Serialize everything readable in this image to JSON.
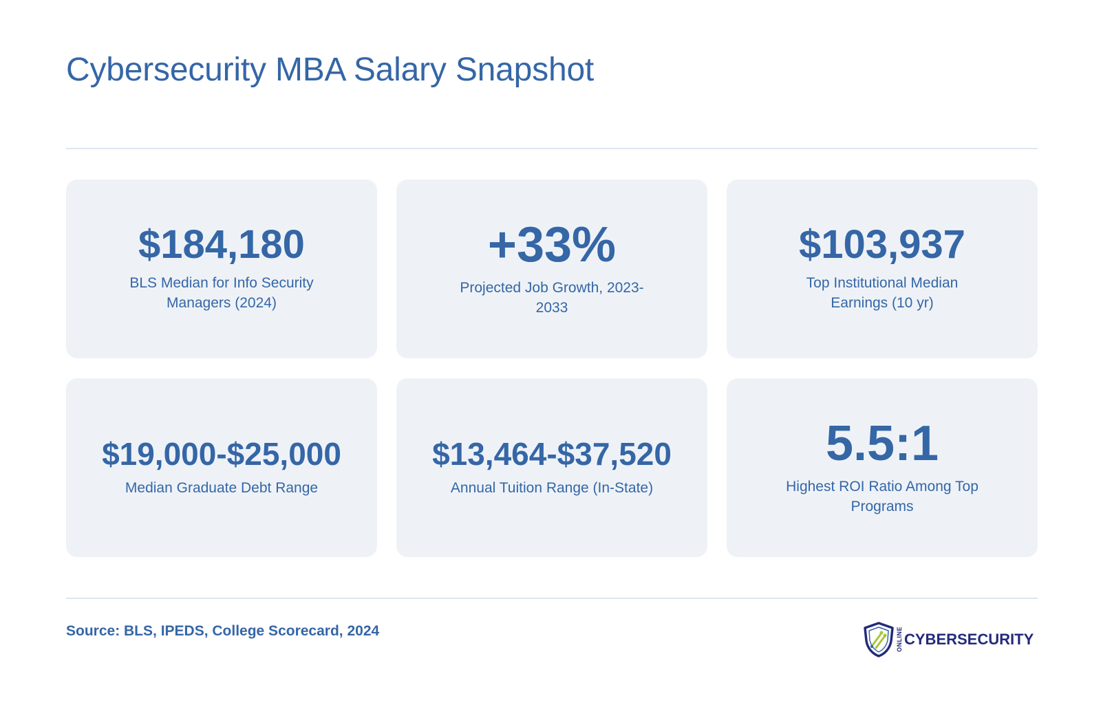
{
  "header": {
    "title": "Cybersecurity MBA Salary Snapshot"
  },
  "stats": [
    {
      "value": "$184,180",
      "label": "BLS Median for Info Security Managers (2024)"
    },
    {
      "value": "+33%",
      "label": "Projected Job Growth, 2023-2033"
    },
    {
      "value": "$103,937",
      "label": "Top Institutional Median Earnings (10 yr)"
    },
    {
      "value": "$19,000-$25,000",
      "label": "Median Graduate Debt Range"
    },
    {
      "value": "$13,464-$37,520",
      "label": "Annual Tuition Range (In-State)"
    },
    {
      "value": "5.5:1",
      "label": "Highest ROI Ratio Among Top Programs"
    }
  ],
  "footer": {
    "source": "Source: BLS, IPEDS, College Scorecard, 2024",
    "logo_small": "ONLINE",
    "logo_text": "CYBERSECURITY"
  },
  "colors": {
    "accent": "#3566a6",
    "card_bg": "#eef2f7",
    "divider": "#dce6f1",
    "logo_navy": "#222a7a",
    "logo_green": "#a8c63a"
  }
}
